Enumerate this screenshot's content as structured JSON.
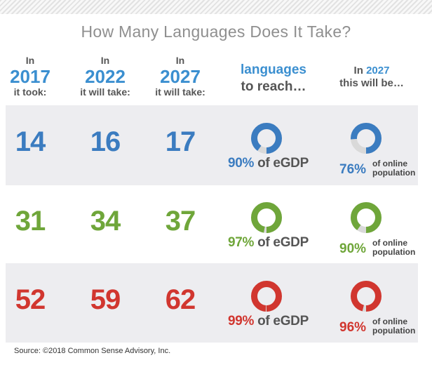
{
  "title": "How Many Languages Does It Take?",
  "headers": {
    "col2017": {
      "pre": "In",
      "year": "2017",
      "post": "it took:"
    },
    "col2022": {
      "pre": "In",
      "year": "2022",
      "post": "it will take:"
    },
    "col2027": {
      "pre": "In",
      "year": "2027",
      "post": "it will take:"
    },
    "reach": {
      "line1": "languages",
      "line2": "to reach…"
    },
    "pop": {
      "pre": "In",
      "year": "2027",
      "line2": "this will be…"
    }
  },
  "source": "Source: ©2018 Common Sense Advisory, Inc.",
  "colors": {
    "blue": "#3b7cc0",
    "green": "#6fa63a",
    "red": "#d1362f",
    "header_blue": "#3b8fd0",
    "donut_track": "#d9d9d9",
    "band": "#ededf0"
  },
  "chart_data": {
    "type": "table",
    "title": "How Many Languages Does It Take?",
    "columns": [
      "2017 it took",
      "2022 it will take",
      "2027 it will take",
      "languages to reach (eGDP)",
      "In 2027 this will be (online population)"
    ],
    "rows": [
      {
        "l2017": "14",
        "l2022": "16",
        "l2027": "17",
        "egdp": 90,
        "egdp_label": "90%",
        "egdp_suffix": "of eGDP",
        "online": 76,
        "online_label": "76%",
        "online_text1": "of online",
        "online_text2": "population",
        "color": "blue"
      },
      {
        "l2017": "31",
        "l2022": "34",
        "l2027": "37",
        "egdp": 97,
        "egdp_label": "97%",
        "egdp_suffix": "of eGDP",
        "online": 90,
        "online_label": "90%",
        "online_text1": "of online",
        "online_text2": "population",
        "color": "green"
      },
      {
        "l2017": "52",
        "l2022": "59",
        "l2027": "62",
        "egdp": 99,
        "egdp_label": "99%",
        "egdp_suffix": "of eGDP",
        "online": 96,
        "online_label": "96%",
        "online_text1": "of online",
        "online_text2": "population",
        "color": "red"
      }
    ]
  }
}
